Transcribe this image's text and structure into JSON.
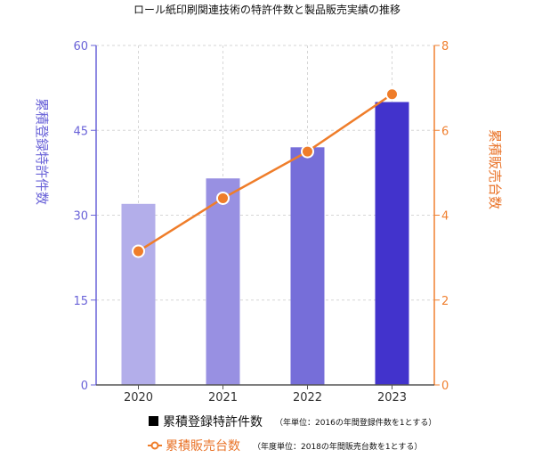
{
  "chart_data": {
    "type": "bar+line",
    "title": "ロール紙印刷関連技術の特許件数と製品販売実績の推移",
    "categories": [
      "2020",
      "2021",
      "2022",
      "2023"
    ],
    "series": [
      {
        "name": "累積登録特許件数",
        "type": "bar",
        "axis": "left",
        "values": [
          32,
          36.5,
          42,
          50
        ],
        "colors": [
          "#b3aeea",
          "#9890e2",
          "#766ed9",
          "#4233cc"
        ]
      },
      {
        "name": "累積販売台数",
        "type": "line",
        "axis": "right",
        "values": [
          3.15,
          4.4,
          5.5,
          6.85
        ],
        "color": "#ef7d2a"
      }
    ],
    "left_axis": {
      "label": "累積登録特許件数",
      "ylim": [
        0,
        60
      ],
      "ticks": [
        "0",
        "15",
        "30",
        "45",
        "60"
      ],
      "color": "#6a63d8"
    },
    "right_axis": {
      "label": "累積販売台数",
      "ylim": [
        0,
        8
      ],
      "ticks": [
        "0",
        "2",
        "4",
        "6",
        "8"
      ],
      "color": "#f08030"
    },
    "grid": true,
    "legend": {
      "placement": "bottom",
      "items": [
        {
          "label": "累積登録特許件数",
          "note": "（年単位：2016の年間登録件数を1とする）",
          "marker": "square",
          "color": "#000000"
        },
        {
          "label": "累積販売台数",
          "note": "（年度単位：2018の年間販売台数を1とする）",
          "marker": "line-circle",
          "color": "#ef7d2a"
        }
      ]
    }
  }
}
